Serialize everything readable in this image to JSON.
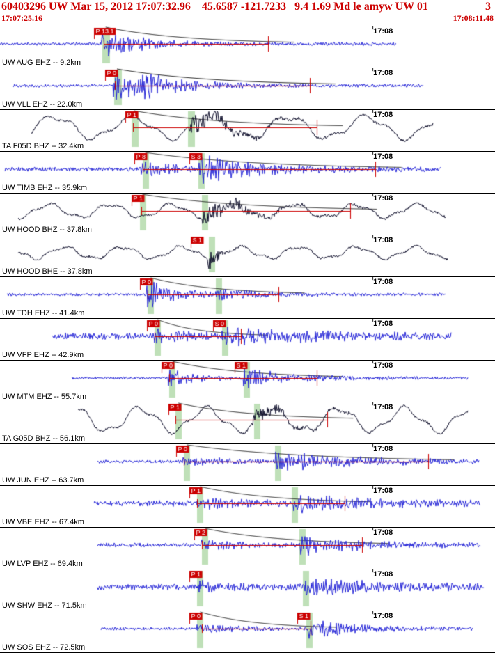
{
  "header": {
    "line1": "60403296 UW Mar 15, 2012 17:07:32.96    45.6587 -121.7233   9.4 1.69 Md le amyw UW 01",
    "page": "3",
    "start_time": "17:07:25.16",
    "end_time": "17:08:11.48"
  },
  "timeline": {
    "minute_label": "17:08",
    "minute_frac": 0.752
  },
  "colors": {
    "red": "#cc0000",
    "blue": "#2424d6",
    "dark": "#12122e",
    "band": "#bfe0b8",
    "text": "#000000"
  },
  "traces": [
    {
      "station": "UW AUG EHZ -- 9.2km",
      "time_label": "17:08",
      "kind": "sp",
      "color_key": "blue",
      "start": 0.0,
      "end": 0.8,
      "p": 0.205,
      "s": null,
      "noise": 2.0,
      "p_amp": 15,
      "p_dec": 60,
      "s_amp": 0,
      "s_dec": 60,
      "bands": [
        {
          "x": 0.207,
          "w": 0.016
        }
      ],
      "picks": [
        {
          "label": "P 13.1",
          "x": 0.19
        }
      ],
      "coda": {
        "a": 0.21,
        "b": 0.542
      },
      "seed": 11
    },
    {
      "station": "UW VLL EHZ -- 22.0km",
      "time_label": "17:08",
      "kind": "sp",
      "color_key": "blue",
      "start": 0.025,
      "end": 0.855,
      "p": 0.228,
      "s": 0.285,
      "noise": 2.0,
      "p_amp": 18,
      "p_dec": 55,
      "s_amp": 8,
      "s_dec": 70,
      "bands": [
        {
          "x": 0.23,
          "w": 0.016
        }
      ],
      "picks": [
        {
          "label": "P 0",
          "x": 0.212
        }
      ],
      "coda": {
        "a": 0.232,
        "b": 0.626
      },
      "seed": 22
    },
    {
      "station": "TA F05D BHZ -- 32.4km",
      "time_label": "17:08",
      "kind": "bb",
      "color_key": "dark",
      "start": 0.063,
      "end": 0.875,
      "p": 0.262,
      "s": null,
      "noise": 1.6,
      "period": 112,
      "bb_amp": 15,
      "burst": {
        "x": 0.38,
        "amp": 15,
        "dec": 60
      },
      "bands": [
        {
          "x": 0.266,
          "w": 0.014
        },
        {
          "x": 0.38,
          "w": 0.014
        }
      ],
      "picks": [
        {
          "label": "P 1",
          "x": 0.253
        }
      ],
      "coda": {
        "a": 0.268,
        "b": 0.64
      },
      "seed": 33
    },
    {
      "station": "UW TIMB EHZ -- 35.9km",
      "time_label": "17:08",
      "kind": "sp",
      "color_key": "blue",
      "start": 0.01,
      "end": 0.89,
      "p": 0.285,
      "s": 0.401,
      "noise": 2.6,
      "p_amp": 9,
      "p_dec": 50,
      "s_amp": 14,
      "s_dec": 90,
      "bands": [
        {
          "x": 0.289,
          "w": 0.013
        },
        {
          "x": 0.401,
          "w": 0.013
        }
      ],
      "picks": [
        {
          "label": "P 8",
          "x": 0.272
        },
        {
          "label": "S 3",
          "x": 0.383
        }
      ],
      "coda": {
        "a": 0.289,
        "b": 0.758
      },
      "seed": 44
    },
    {
      "station": "UW HOOD BHZ -- 37.8km",
      "time_label": "17:08",
      "kind": "bb",
      "color_key": "dark",
      "start": 0.037,
      "end": 0.9,
      "p": 0.279,
      "s": null,
      "noise": 1.5,
      "period": 88,
      "bb_amp": 9,
      "burst": {
        "x": 0.408,
        "amp": 13,
        "dec": 75
      },
      "bands": [
        {
          "x": 0.283,
          "w": 0.013
        },
        {
          "x": 0.408,
          "w": 0.013
        }
      ],
      "picks": [
        {
          "label": "P 1",
          "x": 0.266
        }
      ],
      "coda": {
        "a": 0.285,
        "b": 0.708
      },
      "seed": 55
    },
    {
      "station": "UW HOOD BHE -- 37.8km",
      "time_label": "17:08",
      "kind": "bb",
      "color_key": "dark",
      "start": 0.037,
      "end": 0.905,
      "p": null,
      "s": null,
      "noise": 1.5,
      "period": 84,
      "bb_amp": 8,
      "burst": {
        "x": 0.42,
        "amp": 24,
        "dec": 10
      },
      "bands": [
        {
          "x": 0.422,
          "w": 0.013
        }
      ],
      "picks": [
        {
          "label": "S 1",
          "x": 0.385
        }
      ],
      "coda": null,
      "seed": 66
    },
    {
      "station": "UW TDH EHZ -- 41.4km",
      "time_label": "17:08",
      "kind": "sp",
      "color_key": "blue",
      "start": 0.014,
      "end": 0.9,
      "p": 0.296,
      "s": 0.436,
      "noise": 1.8,
      "p_amp": 17,
      "p_dec": 42,
      "s_amp": 6,
      "s_dec": 60,
      "bands": [
        {
          "x": 0.298,
          "w": 0.013
        },
        {
          "x": 0.436,
          "w": 0.013
        }
      ],
      "picks": [
        {
          "label": "P 0",
          "x": 0.283
        }
      ],
      "coda": {
        "a": 0.298,
        "b": 0.563
      },
      "seed": 77
    },
    {
      "station": "UW VFP EHZ -- 42.9km",
      "time_label": "17:08",
      "kind": "sp",
      "color_key": "blue",
      "start": 0.106,
      "end": 0.912,
      "p": 0.31,
      "s": 0.447,
      "noise": 4.0,
      "p_amp": 6,
      "p_dec": 55,
      "s_amp": 10,
      "s_dec": 110,
      "bands": [
        {
          "x": 0.312,
          "w": 0.013
        },
        {
          "x": 0.449,
          "w": 0.013
        }
      ],
      "picks": [
        {
          "label": "P 0",
          "x": 0.297
        },
        {
          "label": "S 0",
          "x": 0.43
        }
      ],
      "coda": {
        "a": 0.312,
        "b": 0.487
      },
      "seed": 88
    },
    {
      "station": "UW MTM EHZ -- 55.7km",
      "time_label": "17:08",
      "kind": "sp",
      "color_key": "blue",
      "start": 0.145,
      "end": 0.945,
      "p": 0.34,
      "s": 0.492,
      "noise": 1.6,
      "p_amp": 9,
      "p_dec": 45,
      "s_amp": 11,
      "s_dec": 70,
      "bands": [
        {
          "x": 0.342,
          "w": 0.013
        },
        {
          "x": 0.492,
          "w": 0.013
        }
      ],
      "picks": [
        {
          "label": "P 0",
          "x": 0.327
        },
        {
          "label": "S 1",
          "x": 0.474
        }
      ],
      "coda": {
        "a": 0.342,
        "b": 0.64
      },
      "seed": 99
    },
    {
      "station": "TA G05D BHZ -- 56.1km",
      "time_label": "17:08",
      "kind": "bb",
      "color_key": "dark",
      "start": 0.157,
      "end": 0.945,
      "p": 0.352,
      "s": null,
      "noise": 1.5,
      "period": 95,
      "bb_amp": 16,
      "burst": {
        "x": 0.51,
        "amp": 11,
        "dec": 60
      },
      "bands": [
        {
          "x": 0.354,
          "w": 0.013
        },
        {
          "x": 0.513,
          "w": 0.013
        }
      ],
      "picks": [
        {
          "label": "P 1",
          "x": 0.34
        }
      ],
      "coda": {
        "a": 0.354,
        "b": 0.661
      },
      "seed": 110
    },
    {
      "station": "UW JUN EHZ -- 63.7km",
      "time_label": "17:08",
      "kind": "sp",
      "color_key": "blue",
      "start": 0.197,
      "end": 0.968,
      "p": 0.369,
      "s": 0.556,
      "noise": 2.0,
      "p_amp": 6,
      "p_dec": 60,
      "s_amp": 11,
      "s_dec": 120,
      "bands": [
        {
          "x": 0.371,
          "w": 0.013
        },
        {
          "x": 0.556,
          "w": 0.013
        }
      ],
      "picks": [
        {
          "label": "P 0",
          "x": 0.356
        }
      ],
      "coda": {
        "a": 0.371,
        "b": 0.865
      },
      "seed": 121
    },
    {
      "station": "UW VBE EHZ -- 67.4km",
      "time_label": "17:08",
      "kind": "sp",
      "color_key": "blue",
      "start": 0.19,
      "end": 0.97,
      "p": 0.396,
      "s": 0.59,
      "noise": 3.5,
      "p_amp": 5,
      "p_dec": 60,
      "s_amp": 9,
      "s_dec": 100,
      "bands": [
        {
          "x": 0.398,
          "w": 0.013
        },
        {
          "x": 0.59,
          "w": 0.013
        }
      ],
      "picks": [
        {
          "label": "P 1",
          "x": 0.383
        }
      ],
      "coda": {
        "a": 0.398,
        "b": 0.696
      },
      "seed": 132
    },
    {
      "station": "UW LVP EHZ -- 69.4km",
      "time_label": "17:08",
      "kind": "sp",
      "color_key": "blue",
      "start": 0.197,
      "end": 0.97,
      "p": 0.406,
      "s": 0.605,
      "noise": 2.5,
      "p_amp": 6,
      "p_dec": 50,
      "s_amp": 10,
      "s_dec": 90,
      "bands": [
        {
          "x": 0.408,
          "w": 0.013
        },
        {
          "x": 0.605,
          "w": 0.013
        }
      ],
      "picks": [
        {
          "label": "P 2",
          "x": 0.393
        }
      ],
      "coda": {
        "a": 0.408,
        "b": 0.731
      },
      "seed": 143
    },
    {
      "station": "UW SHW EHZ -- 71.5km",
      "time_label": "17:08",
      "kind": "sp",
      "color_key": "blue",
      "start": 0.197,
      "end": 0.978,
      "p": 0.396,
      "s": 0.612,
      "noise": 3.5,
      "p_amp": 5,
      "p_dec": 60,
      "s_amp": 9,
      "s_dec": 110,
      "bands": [
        {
          "x": 0.398,
          "w": 0.013
        },
        {
          "x": 0.612,
          "w": 0.013
        }
      ],
      "picks": [
        {
          "label": "P 1",
          "x": 0.383
        }
      ],
      "coda": null,
      "seed": 154
    },
    {
      "station": "UW SOS EHZ -- 72.5km",
      "time_label": "17:08",
      "kind": "sp",
      "color_key": "blue",
      "start": 0.204,
      "end": 0.955,
      "p": 0.396,
      "s": 0.619,
      "noise": 1.8,
      "p_amp": 5,
      "p_dec": 60,
      "s_amp": 12,
      "s_dec": 70,
      "bands": [
        {
          "x": 0.398,
          "w": 0.013
        },
        {
          "x": 0.619,
          "w": 0.013
        }
      ],
      "picks": [
        {
          "label": "P 0",
          "x": 0.383
        },
        {
          "label": "S 1",
          "x": 0.6
        }
      ],
      "coda": {
        "a": 0.408,
        "b": 0.627
      },
      "seed": 165
    }
  ]
}
